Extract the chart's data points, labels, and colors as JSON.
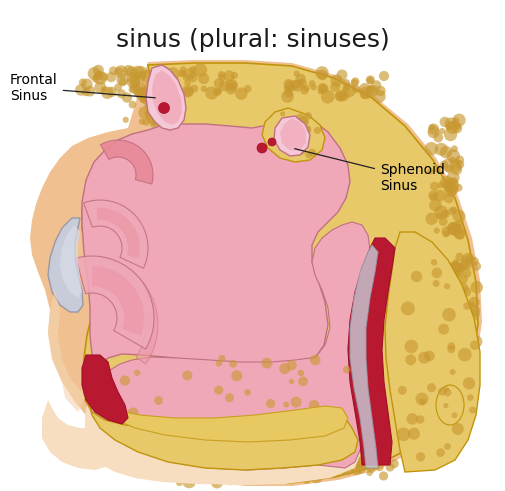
{
  "title": "sinus (plural: sinuses)",
  "title_fontsize": 18,
  "title_color": "#1a1a1a",
  "background_color": "#ffffff",
  "label_frontal": "Frontal\nSinus",
  "label_sphenoid": "Sphenoid\nSinus",
  "label_fontsize": 10,
  "colors": {
    "bone": "#E8C96A",
    "bone_dark": "#D4A835",
    "bone_spots": "#C89830",
    "skin_outer": "#F0C090",
    "skin_light": "#F8DEC0",
    "face_skin": "#F5D5B0",
    "nasal_pink": "#F0A8B8",
    "nasal_mid": "#EE9AAA",
    "nasal_dark": "#E88898",
    "turbinate_fill": "#EFA8B8",
    "turbinate_dark": "#E090A0",
    "dark_red": "#B81830",
    "dark_red2": "#A01028",
    "cartilage": "#C8CCD8",
    "cartilage2": "#D8DCE8",
    "throat_pink": "#EEAABB",
    "outline_bone": "#C0940A",
    "outline_pink": "#C07080",
    "soft_pink": "#F5C8D8",
    "pale_pink": "#F8E0E8",
    "chin_skin": "#F0C8A8",
    "neck_skin": "#EEC0A0"
  }
}
